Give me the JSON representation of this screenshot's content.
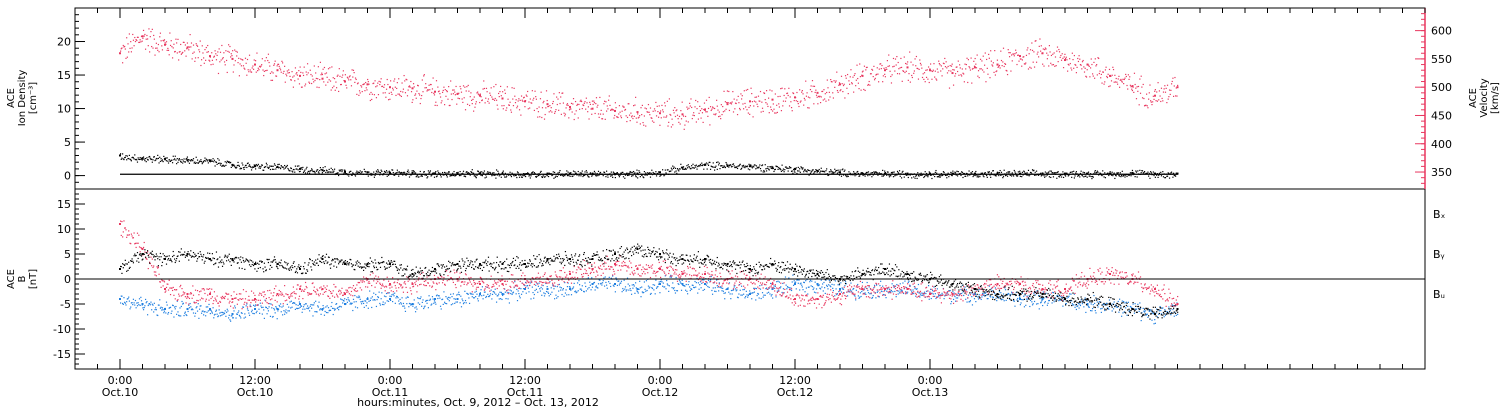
{
  "colors": {
    "density": "#000000",
    "velocity": "#e8375f",
    "bx": "#000000",
    "by": "#1f7fe0",
    "bz": "#e8375f"
  },
  "chart_data": [
    {
      "type": "scatter",
      "panel": "plasma",
      "ylabel_left": [
        "ACE",
        "Ion Density",
        "[cm⁻³]"
      ],
      "ylabel_right": [
        "ACE",
        "Velocity",
        "[km/s]"
      ],
      "ylim_left": [
        -2,
        25
      ],
      "yticks_left": [
        0,
        5,
        10,
        15,
        20
      ],
      "ylim_right": [
        320,
        640
      ],
      "yticks_right": [
        350,
        400,
        450,
        500,
        550,
        600
      ],
      "grid": false,
      "series": [
        {
          "axis": "left",
          "x": [
            0,
            2,
            4,
            6,
            8,
            10,
            12,
            14,
            16,
            18,
            20,
            22,
            24,
            26,
            28,
            30,
            32,
            34,
            36,
            38,
            40,
            42,
            44,
            46,
            48,
            50,
            52,
            54,
            56,
            58,
            60,
            62,
            64,
            66,
            68,
            70,
            72,
            74,
            76,
            78,
            80,
            82,
            84,
            86,
            88,
            90,
            92,
            94
          ],
          "y": [
            3.0,
            2.6,
            2.5,
            2.3,
            2.2,
            1.6,
            1.4,
            1.3,
            1.0,
            0.8,
            0.6,
            0.5,
            0.4,
            0.4,
            0.3,
            0.3,
            0.3,
            0.3,
            0.2,
            0.3,
            0.3,
            0.3,
            0.2,
            0.3,
            0.5,
            1.2,
            1.6,
            1.5,
            1.4,
            1.2,
            1.0,
            0.7,
            0.5,
            0.3,
            0.3,
            0.3,
            0.3,
            0.3,
            0.3,
            0.3,
            0.3,
            0.3,
            0.3,
            0.3,
            0.3,
            0.4,
            0.3,
            0.3
          ]
        },
        {
          "axis": "right",
          "x": [
            0,
            2,
            4,
            6,
            8,
            10,
            12,
            14,
            16,
            18,
            20,
            22,
            24,
            26,
            28,
            30,
            32,
            34,
            36,
            38,
            40,
            42,
            44,
            46,
            48,
            50,
            52,
            54,
            56,
            58,
            60,
            62,
            64,
            66,
            68,
            70,
            72,
            74,
            76,
            78,
            80,
            82,
            84,
            86,
            88,
            90,
            92,
            94
          ],
          "y": [
            560,
            590,
            575,
            570,
            555,
            550,
            540,
            530,
            520,
            515,
            510,
            505,
            500,
            498,
            492,
            488,
            485,
            480,
            475,
            470,
            465,
            462,
            458,
            456,
            454,
            452,
            460,
            470,
            475,
            478,
            482,
            490,
            505,
            520,
            530,
            535,
            530,
            525,
            535,
            540,
            555,
            560,
            548,
            540,
            520,
            502,
            485,
            500
          ]
        }
      ]
    },
    {
      "type": "scatter",
      "panel": "field",
      "ylabel": [
        "ACE",
        "B",
        "[nT]"
      ],
      "ylim": [
        -18,
        18
      ],
      "yticks": [
        -15,
        -10,
        -5,
        0,
        5,
        10,
        15
      ],
      "grid": false,
      "series": [
        {
          "name": "Bₓ",
          "x": [
            0,
            2,
            4,
            6,
            8,
            10,
            12,
            14,
            16,
            18,
            20,
            22,
            24,
            26,
            28,
            30,
            32,
            34,
            36,
            38,
            40,
            42,
            44,
            46,
            48,
            50,
            52,
            54,
            56,
            58,
            60,
            62,
            64,
            66,
            68,
            70,
            72,
            74,
            76,
            78,
            80,
            82,
            84,
            86,
            88,
            90,
            92,
            94
          ],
          "y": [
            2,
            5,
            4,
            5,
            4,
            4,
            3,
            3,
            2,
            4,
            3,
            3,
            3,
            1,
            2,
            3,
            3,
            3,
            3,
            4,
            4,
            4,
            5,
            6,
            5,
            4,
            4,
            3,
            2,
            3,
            2,
            1,
            0,
            1,
            2,
            1,
            0,
            -1,
            -2,
            -3,
            -3,
            -3,
            -4,
            -4,
            -5,
            -6,
            -7,
            -6
          ]
        },
        {
          "name": "Bᵧ",
          "x": [
            0,
            2,
            4,
            6,
            8,
            10,
            12,
            14,
            16,
            18,
            20,
            22,
            24,
            26,
            28,
            30,
            32,
            34,
            36,
            38,
            40,
            42,
            44,
            46,
            48,
            50,
            52,
            54,
            56,
            58,
            60,
            62,
            64,
            66,
            68,
            70,
            72,
            74,
            76,
            78,
            80,
            82,
            84,
            86,
            88,
            90,
            92,
            94
          ],
          "y": [
            -4,
            -5,
            -6,
            -6,
            -6,
            -7,
            -6,
            -6,
            -5,
            -6,
            -5,
            -4,
            -4,
            -5,
            -4,
            -4,
            -3,
            -3,
            -2,
            -2,
            -2,
            -1,
            -1,
            -2,
            -1,
            -1,
            -1,
            -2,
            -3,
            -2,
            -1,
            -1,
            -2,
            -2,
            -2,
            -2,
            -3,
            -3,
            -3,
            -3,
            -4,
            -4,
            -4,
            -5,
            -5,
            -6,
            -7,
            -6
          ]
        },
        {
          "name": "Bᵤ",
          "x": [
            0,
            2,
            4,
            6,
            8,
            10,
            12,
            14,
            16,
            18,
            20,
            22,
            24,
            26,
            28,
            30,
            32,
            34,
            36,
            38,
            40,
            42,
            44,
            46,
            48,
            50,
            52,
            54,
            56,
            58,
            60,
            62,
            64,
            66,
            68,
            70,
            72,
            74,
            76,
            78,
            80,
            82,
            84,
            86,
            88,
            90,
            92,
            94
          ],
          "y": [
            11,
            6,
            -2,
            -3,
            -3,
            -4,
            -4,
            -3,
            -2,
            -2,
            -3,
            0,
            -1,
            -1,
            0,
            0,
            -1,
            -1,
            0,
            0,
            1,
            2,
            3,
            2,
            2,
            1,
            1,
            0,
            0,
            -1,
            -4,
            -4,
            -3,
            -2,
            -2,
            -2,
            -3,
            -3,
            -2,
            -1,
            -1,
            -2,
            -2,
            0,
            1,
            0,
            -2,
            -5
          ]
        }
      ]
    }
  ],
  "xaxis": {
    "xlim_hours": [
      -4,
      116
    ],
    "ticks": [
      {
        "h": 0,
        "time": "0:00",
        "date": "Oct.10"
      },
      {
        "h": 12,
        "time": "12:00",
        "date": "Oct.10"
      },
      {
        "h": 24,
        "time": "0:00",
        "date": "Oct.11"
      },
      {
        "h": 36,
        "time": "12:00",
        "date": "Oct.11"
      },
      {
        "h": 48,
        "time": "0:00",
        "date": "Oct.12"
      },
      {
        "h": 60,
        "time": "12:00",
        "date": "Oct.12"
      },
      {
        "h": 72,
        "time": "0:00",
        "date": "Oct.13"
      }
    ],
    "title": "hours:minutes, Oct.  9, 2012 – Oct. 13, 2012"
  }
}
